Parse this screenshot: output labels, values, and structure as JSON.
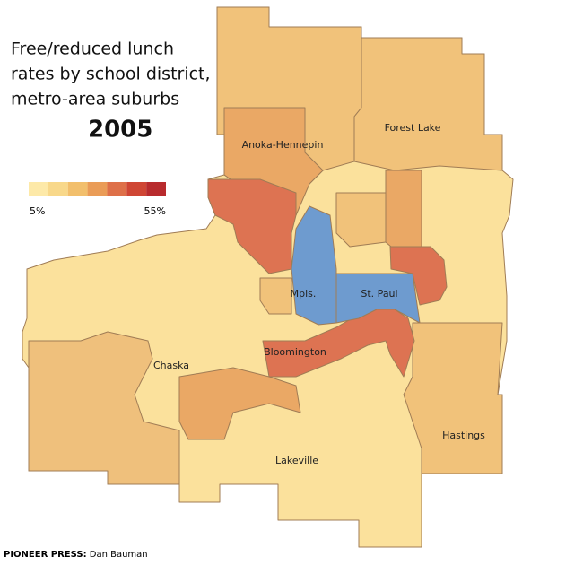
{
  "title": {
    "lines": [
      "Free/reduced lunch",
      "rates by school district,",
      "metro-area suburbs"
    ],
    "year": "2005"
  },
  "legend": {
    "low_label": "5%",
    "high_label": "55%",
    "colors": [
      "#fde9a8",
      "#f8d88a",
      "#f2bf6c",
      "#ea9c57",
      "#de7049",
      "#cf4634",
      "#b82b2d"
    ]
  },
  "districts": [
    "Anoka-Hennepin",
    "Forest Lake",
    "Mpls.",
    "St. Paul",
    "Bloomington",
    "Chaska",
    "Hastings",
    "Lakeville"
  ],
  "credit": {
    "source": "PIONEER PRESS:",
    "author": "Dan Bauman"
  }
}
